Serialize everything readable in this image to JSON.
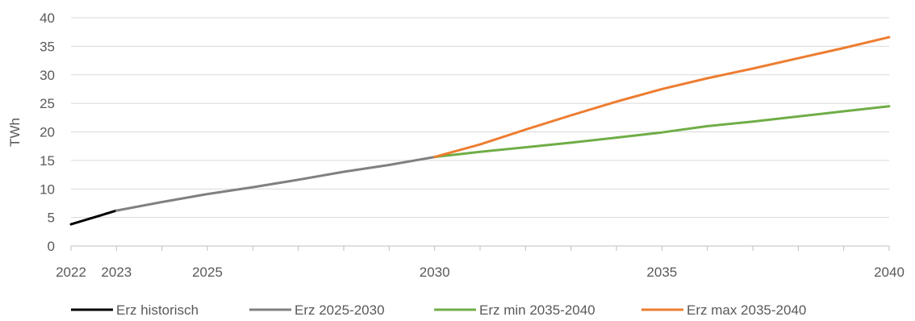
{
  "chart_data": {
    "type": "line",
    "title": "",
    "xlabel": "",
    "ylabel": "TWh",
    "xlim": [
      2022,
      2040
    ],
    "ylim": [
      0,
      40
    ],
    "y_ticks": [
      0,
      5,
      10,
      15,
      20,
      25,
      30,
      35,
      40
    ],
    "x_tick_labels": [
      2022,
      2023,
      2025,
      2030,
      2035,
      2040
    ],
    "x_minor_ticks": [
      2022,
      2023,
      2024,
      2025,
      2026,
      2027,
      2028,
      2029,
      2030,
      2031,
      2032,
      2033,
      2034,
      2035,
      2036,
      2037,
      2038,
      2039,
      2040
    ],
    "grid": "horizontal",
    "legend_position": "bottom",
    "series": [
      {
        "name": "Erz historisch",
        "color": "#000000",
        "points": [
          [
            2022,
            3.8
          ],
          [
            2023,
            6.2
          ]
        ]
      },
      {
        "name": "Erz 2025-2030",
        "color": "#808080",
        "points": [
          [
            2023,
            6.2
          ],
          [
            2024,
            7.7
          ],
          [
            2025,
            9.1
          ],
          [
            2026,
            10.3
          ],
          [
            2027,
            11.6
          ],
          [
            2028,
            13.0
          ],
          [
            2029,
            14.2
          ],
          [
            2030,
            15.6
          ]
        ]
      },
      {
        "name": "Erz min 2035-2040",
        "color": "#70ad47",
        "points": [
          [
            2030,
            15.6
          ],
          [
            2031,
            16.5
          ],
          [
            2032,
            17.3
          ],
          [
            2033,
            18.1
          ],
          [
            2034,
            19.0
          ],
          [
            2035,
            19.9
          ],
          [
            2036,
            21.0
          ],
          [
            2037,
            21.8
          ],
          [
            2038,
            22.7
          ],
          [
            2039,
            23.6
          ],
          [
            2040,
            24.5
          ]
        ]
      },
      {
        "name": "Erz max 2035-2040",
        "color": "#ed7d31",
        "points": [
          [
            2030,
            15.6
          ],
          [
            2031,
            17.8
          ],
          [
            2032,
            20.4
          ],
          [
            2033,
            22.9
          ],
          [
            2034,
            25.3
          ],
          [
            2035,
            27.5
          ],
          [
            2036,
            29.4
          ],
          [
            2037,
            31.1
          ],
          [
            2038,
            32.9
          ],
          [
            2039,
            34.7
          ],
          [
            2040,
            36.6
          ]
        ]
      }
    ]
  }
}
